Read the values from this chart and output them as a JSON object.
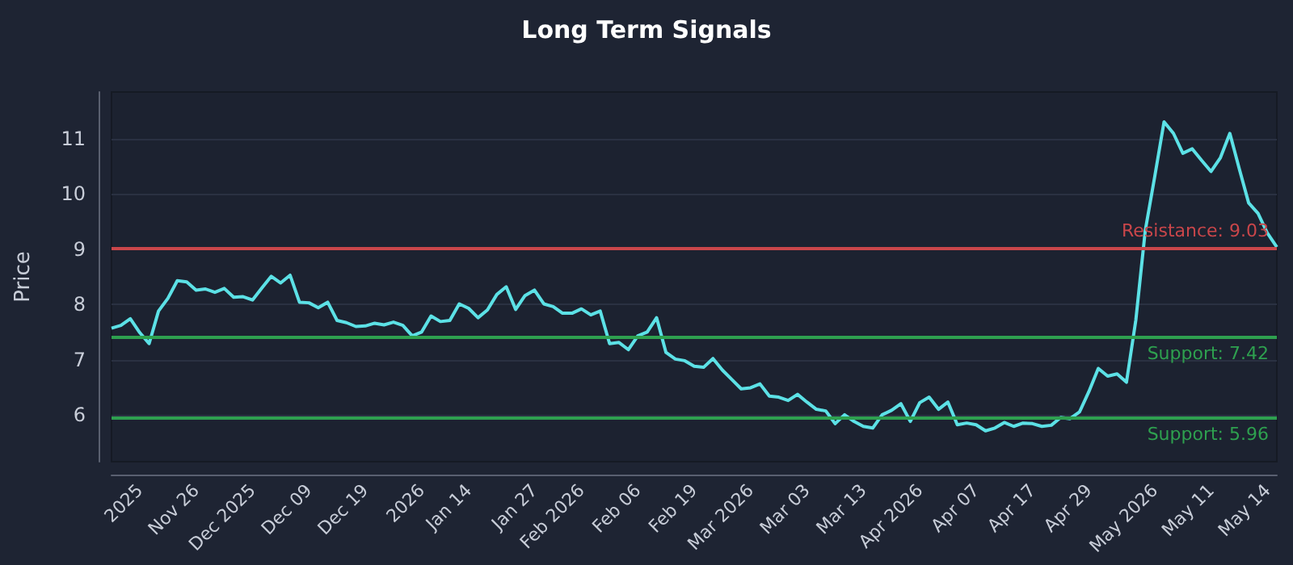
{
  "chart_data": {
    "type": "line",
    "title": "Long Term Signals",
    "ylabel": "Price",
    "categories": [
      null,
      null,
      null,
      "2025",
      null,
      null,
      null,
      null,
      null,
      "Nov 26",
      null,
      null,
      null,
      null,
      null,
      "Dec 2025",
      null,
      null,
      null,
      null,
      null,
      "Dec 09",
      null,
      null,
      null,
      null,
      null,
      "Dec 19",
      null,
      null,
      null,
      null,
      null,
      "2026",
      null,
      null,
      null,
      null,
      "Jan 14",
      null,
      null,
      null,
      null,
      null,
      null,
      "Jan 27",
      null,
      null,
      null,
      null,
      "Feb 2026",
      null,
      null,
      null,
      null,
      null,
      "Feb 06",
      null,
      null,
      null,
      null,
      null,
      "Feb 19",
      null,
      null,
      null,
      null,
      null,
      "Mar 2026",
      null,
      null,
      null,
      null,
      null,
      "Mar 03",
      null,
      null,
      null,
      null,
      null,
      "Mar 13",
      null,
      null,
      null,
      null,
      null,
      "Apr 2026",
      null,
      null,
      null,
      null,
      null,
      "Apr 07",
      null,
      null,
      null,
      null,
      null,
      "Apr 17",
      null,
      null,
      null,
      null,
      null,
      "Apr 29",
      null,
      null,
      null,
      null,
      null,
      null,
      "May 2026",
      null,
      null,
      null,
      null,
      null,
      "May 11",
      null,
      null,
      null,
      null,
      null,
      "May 14",
      null
    ],
    "series": [
      {
        "color": "#5ce1e6",
        "values": [
          7.57,
          7.62,
          7.74,
          7.49,
          7.29,
          7.88,
          8.11,
          8.43,
          8.41,
          8.26,
          8.28,
          8.22,
          8.29,
          8.13,
          8.14,
          8.08,
          8.3,
          8.51,
          8.39,
          8.53,
          8.04,
          8.03,
          7.94,
          8.04,
          7.71,
          7.67,
          7.6,
          7.61,
          7.66,
          7.63,
          7.68,
          7.62,
          7.43,
          7.5,
          7.79,
          7.69,
          7.71,
          8.01,
          7.93,
          7.76,
          7.9,
          8.18,
          8.32,
          7.91,
          8.16,
          8.26,
          8.01,
          7.96,
          7.84,
          7.84,
          7.92,
          7.81,
          7.88,
          7.29,
          7.31,
          7.18,
          7.43,
          7.5,
          7.76,
          7.13,
          7.01,
          6.98,
          6.88,
          6.86,
          7.02,
          6.81,
          6.64,
          6.47,
          6.49,
          6.56,
          6.34,
          6.32,
          6.26,
          6.37,
          6.23,
          6.1,
          6.07,
          5.84,
          6.0,
          5.88,
          5.79,
          5.76,
          6.0,
          6.08,
          6.2,
          5.88,
          6.22,
          6.32,
          6.1,
          6.23,
          5.82,
          5.85,
          5.82,
          5.71,
          5.76,
          5.86,
          5.79,
          5.85,
          5.84,
          5.79,
          5.81,
          5.95,
          5.93,
          6.05,
          6.42,
          6.84,
          6.7,
          6.74,
          6.59,
          7.72,
          9.34,
          10.31,
          11.31,
          11.1,
          10.74,
          10.82,
          10.61,
          10.41,
          10.66,
          11.1,
          10.46,
          9.84,
          9.65,
          9.29,
          9.04
        ]
      }
    ],
    "ylim": [
      5.15,
      11.85
    ],
    "yticks": [
      6,
      7,
      8,
      9,
      10,
      11
    ],
    "grid": "y",
    "marker": "none",
    "line_style": "solid",
    "ref_lines": [
      {
        "axis": "y",
        "value": 9.03,
        "label": "Resistance: 9.03",
        "color": "#c9464a"
      },
      {
        "axis": "y",
        "value": 7.42,
        "label": "Support: 7.42",
        "color": "#2ea04f"
      },
      {
        "axis": "y",
        "value": 5.96,
        "label": "Support: 5.96",
        "color": "#2ea04f"
      }
    ]
  }
}
